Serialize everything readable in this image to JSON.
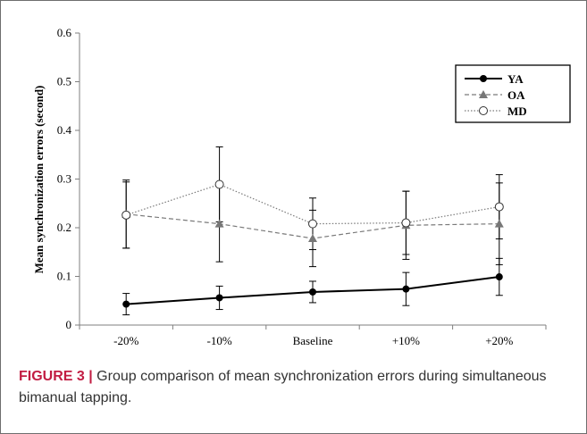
{
  "chart_data": {
    "type": "line",
    "title": "",
    "xlabel": "",
    "ylabel": "Mean synchronization errors (second)",
    "categories": [
      "-20%",
      "-10%",
      "Baseline",
      "+10%",
      "+20%"
    ],
    "ylim": [
      0,
      0.6
    ],
    "yticks": [
      "0",
      "0.1",
      "0.2",
      "0.3",
      "0.4",
      "0.5",
      "0.6"
    ],
    "grid": false,
    "legend_position": "top-right",
    "series": [
      {
        "name": "YA",
        "style": "solid-black-filled-circle",
        "color": "#000000",
        "values": [
          0.043,
          0.056,
          0.068,
          0.074,
          0.099
        ],
        "errors": [
          0.022,
          0.024,
          0.022,
          0.034,
          0.038
        ]
      },
      {
        "name": "OA",
        "style": "dashed-gray-triangle",
        "color": "#777777",
        "values": [
          0.228,
          0.208,
          0.178,
          0.205,
          0.208
        ],
        "errors": [
          0.07,
          0.078,
          0.058,
          0.07,
          0.084
        ]
      },
      {
        "name": "MD",
        "style": "dotted-gray-open-circle",
        "color": "#777777",
        "values": [
          0.226,
          0.289,
          0.208,
          0.21,
          0.243
        ],
        "errors": [
          0.068,
          0.077,
          0.053,
          0.065,
          0.066
        ]
      }
    ]
  },
  "caption": {
    "label": "FIGURE 3 |",
    "text": " Group comparison of mean synchronization errors during simultaneous bimanual tapping."
  }
}
